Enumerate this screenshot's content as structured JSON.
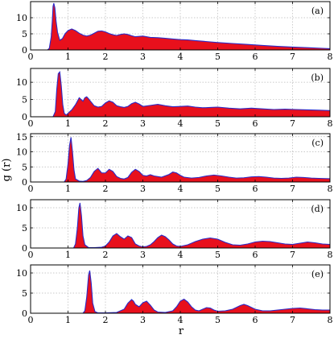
{
  "chart_data": {
    "type": "area",
    "layout": "5 vertically stacked panels, shared x axis",
    "xlabel": "r",
    "ylabel": "g (r)",
    "xlim": [
      0,
      8
    ],
    "x_ticks": [
      0,
      1,
      2,
      3,
      4,
      5,
      6,
      7,
      8
    ],
    "grid": true,
    "fill_color": "#e8101c",
    "line_color": "#2a2ac8",
    "panels": [
      {
        "label": "(a)",
        "ylim": [
          0,
          15
        ],
        "y_ticks": [
          0,
          5,
          10
        ],
        "x": [
          0,
          0.45,
          0.5,
          0.55,
          0.58,
          0.6,
          0.62,
          0.65,
          0.68,
          0.72,
          0.78,
          0.85,
          0.92,
          1.0,
          1.1,
          1.2,
          1.3,
          1.4,
          1.5,
          1.6,
          1.7,
          1.8,
          1.9,
          2.0,
          2.1,
          2.2,
          2.3,
          2.4,
          2.5,
          2.6,
          2.7,
          2.8,
          2.9,
          3.0,
          3.2,
          3.4,
          3.6,
          3.8,
          4.0,
          4.2,
          4.4,
          4.6,
          4.8,
          5.0,
          5.4,
          5.8,
          6.2,
          6.6,
          7.0,
          7.4,
          7.8,
          8.0
        ],
        "y": [
          0,
          0,
          0.5,
          4.0,
          9.0,
          13.5,
          14.5,
          13.0,
          9.0,
          5.5,
          3.0,
          3.5,
          5.0,
          6.0,
          6.5,
          6.0,
          5.2,
          4.6,
          4.3,
          4.6,
          5.2,
          5.8,
          5.9,
          5.6,
          5.1,
          4.7,
          4.5,
          4.8,
          5.0,
          4.8,
          4.4,
          4.1,
          4.2,
          4.3,
          3.9,
          3.8,
          3.6,
          3.4,
          3.2,
          3.1,
          2.9,
          2.7,
          2.5,
          2.3,
          2.0,
          1.7,
          1.4,
          1.1,
          0.9,
          0.7,
          0.5,
          0.4
        ]
      },
      {
        "label": "(b)",
        "ylim": [
          0,
          14
        ],
        "y_ticks": [
          0,
          5,
          10
        ],
        "x": [
          0,
          0.6,
          0.66,
          0.7,
          0.74,
          0.78,
          0.82,
          0.86,
          0.9,
          0.95,
          1.0,
          1.1,
          1.2,
          1.3,
          1.35,
          1.4,
          1.45,
          1.5,
          1.55,
          1.6,
          1.7,
          1.8,
          1.9,
          2.0,
          2.1,
          2.2,
          2.3,
          2.4,
          2.5,
          2.6,
          2.7,
          2.8,
          2.9,
          3.0,
          3.2,
          3.4,
          3.6,
          3.8,
          4.0,
          4.2,
          4.4,
          4.6,
          4.8,
          5.0,
          5.3,
          5.6,
          5.9,
          6.2,
          6.5,
          6.8,
          7.1,
          7.4,
          7.7,
          8.0
        ],
        "y": [
          0,
          0,
          1.5,
          8.0,
          12.5,
          13.0,
          9.0,
          3.5,
          1.0,
          0.5,
          1.0,
          2.0,
          3.5,
          5.5,
          5.0,
          4.5,
          5.5,
          5.8,
          5.2,
          4.5,
          3.2,
          2.8,
          3.0,
          4.0,
          4.6,
          4.2,
          3.2,
          2.9,
          2.7,
          3.0,
          3.8,
          4.2,
          3.7,
          3.0,
          3.3,
          3.6,
          3.2,
          2.9,
          3.0,
          3.1,
          2.8,
          2.6,
          2.7,
          2.8,
          2.5,
          2.3,
          2.5,
          2.3,
          2.1,
          2.2,
          2.1,
          2.0,
          1.9,
          1.8
        ]
      },
      {
        "label": "(c)",
        "ylim": [
          0,
          16
        ],
        "y_ticks": [
          0,
          5,
          10,
          15
        ],
        "x": [
          0,
          0.9,
          0.95,
          1.0,
          1.04,
          1.08,
          1.12,
          1.16,
          1.2,
          1.3,
          1.4,
          1.5,
          1.6,
          1.7,
          1.8,
          1.9,
          2.0,
          2.1,
          2.2,
          2.3,
          2.4,
          2.5,
          2.6,
          2.7,
          2.8,
          2.9,
          3.0,
          3.1,
          3.2,
          3.3,
          3.5,
          3.7,
          3.8,
          3.9,
          4.0,
          4.1,
          4.3,
          4.5,
          4.7,
          4.9,
          5.1,
          5.3,
          5.5,
          5.7,
          5.9,
          6.1,
          6.3,
          6.5,
          6.7,
          6.9,
          7.1,
          7.3,
          7.5,
          7.7,
          8.0
        ],
        "y": [
          0,
          0,
          1.0,
          6.0,
          12.0,
          14.8,
          10.0,
          4.0,
          1.0,
          0.3,
          0.2,
          0.5,
          1.5,
          3.5,
          4.5,
          3.0,
          3.0,
          4.2,
          3.5,
          1.8,
          1.2,
          1.0,
          1.5,
          3.2,
          4.2,
          3.5,
          2.2,
          2.0,
          2.4,
          2.0,
          1.6,
          2.5,
          3.3,
          3.0,
          2.2,
          1.6,
          1.3,
          1.5,
          2.0,
          2.3,
          2.0,
          1.6,
          1.3,
          1.4,
          1.7,
          1.8,
          1.6,
          1.3,
          1.2,
          1.3,
          1.6,
          1.5,
          1.3,
          1.2,
          1.1
        ]
      },
      {
        "label": "(d)",
        "ylim": [
          0,
          12
        ],
        "y_ticks": [
          0,
          5,
          10
        ],
        "x": [
          0,
          1.15,
          1.2,
          1.25,
          1.29,
          1.32,
          1.36,
          1.4,
          1.45,
          1.55,
          1.7,
          1.9,
          2.0,
          2.1,
          2.2,
          2.3,
          2.4,
          2.5,
          2.6,
          2.7,
          2.8,
          2.9,
          3.0,
          3.1,
          3.2,
          3.3,
          3.4,
          3.5,
          3.6,
          3.7,
          3.8,
          3.9,
          4.0,
          4.2,
          4.4,
          4.6,
          4.8,
          5.0,
          5.2,
          5.4,
          5.6,
          5.8,
          6.0,
          6.2,
          6.4,
          6.6,
          6.8,
          7.0,
          7.2,
          7.4,
          7.6,
          7.8,
          8.0
        ],
        "y": [
          0,
          0,
          1.0,
          5.0,
          10.0,
          11.2,
          8.0,
          3.0,
          0.8,
          0.1,
          0.1,
          0.2,
          0.5,
          1.5,
          3.0,
          3.6,
          2.8,
          2.2,
          3.0,
          2.6,
          1.0,
          0.5,
          0.3,
          0.4,
          0.8,
          1.6,
          2.6,
          3.2,
          2.8,
          2.0,
          1.0,
          0.5,
          0.4,
          0.8,
          1.6,
          2.2,
          2.5,
          2.2,
          1.4,
          0.8,
          0.7,
          1.0,
          1.5,
          1.7,
          1.6,
          1.3,
          1.0,
          0.9,
          1.2,
          1.5,
          1.3,
          1.0,
          0.9
        ]
      },
      {
        "label": "(e)",
        "ylim": [
          0,
          12
        ],
        "y_ticks": [
          0,
          5,
          10
        ],
        "x": [
          0,
          1.4,
          1.45,
          1.5,
          1.55,
          1.58,
          1.62,
          1.66,
          1.72,
          1.8,
          2.0,
          2.3,
          2.5,
          2.6,
          2.7,
          2.75,
          2.8,
          2.9,
          3.0,
          3.1,
          3.2,
          3.3,
          3.4,
          3.6,
          3.8,
          3.9,
          4.0,
          4.1,
          4.2,
          4.3,
          4.4,
          4.5,
          4.6,
          4.7,
          4.8,
          4.9,
          5.0,
          5.2,
          5.4,
          5.6,
          5.7,
          5.8,
          6.0,
          6.2,
          6.4,
          6.6,
          6.8,
          7.0,
          7.2,
          7.4,
          7.6,
          7.8,
          8.0
        ],
        "y": [
          0,
          0,
          0.6,
          4.0,
          9.5,
          10.6,
          7.5,
          2.5,
          0.4,
          0.1,
          0.1,
          0.2,
          1.0,
          2.5,
          3.4,
          3.0,
          2.2,
          1.6,
          2.6,
          3.0,
          2.0,
          0.8,
          0.3,
          0.2,
          0.6,
          1.6,
          3.0,
          3.5,
          2.8,
          1.6,
          0.8,
          0.6,
          1.0,
          1.4,
          1.3,
          0.8,
          0.5,
          0.6,
          1.0,
          1.9,
          2.2,
          1.9,
          1.0,
          0.6,
          0.6,
          0.8,
          1.0,
          1.2,
          1.3,
          1.1,
          0.9,
          0.8,
          0.8
        ]
      }
    ]
  }
}
